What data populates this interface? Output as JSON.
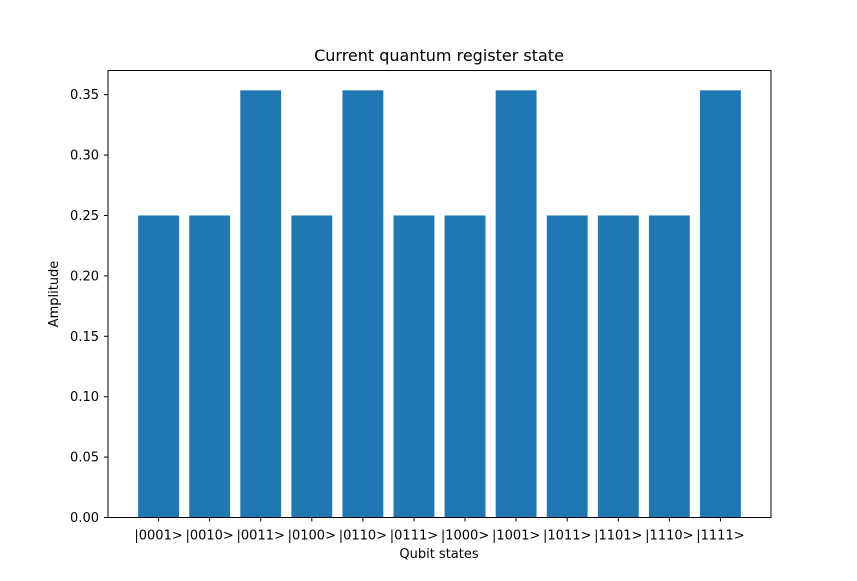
{
  "chart_data": {
    "type": "bar",
    "title": "Current quantum register state",
    "xlabel": "Qubit states",
    "ylabel": "Amplitude",
    "categories": [
      "|0001>",
      "|0010>",
      "|0011>",
      "|0100>",
      "|0110>",
      "|0111>",
      "|1000>",
      "|1001>",
      "|1011>",
      "|1101>",
      "|1110>",
      "|1111>"
    ],
    "values": [
      0.25,
      0.25,
      0.3536,
      0.25,
      0.3536,
      0.25,
      0.25,
      0.3536,
      0.25,
      0.25,
      0.25,
      0.3536
    ],
    "ylim": [
      0,
      0.37
    ],
    "yticks": [
      0.0,
      0.05,
      0.1,
      0.15,
      0.2,
      0.25,
      0.3,
      0.35
    ],
    "ytick_labels": [
      "0.00",
      "0.05",
      "0.10",
      "0.15",
      "0.20",
      "0.25",
      "0.30",
      "0.35"
    ],
    "bar_color": "#1f77b4",
    "grid": false,
    "legend": "none"
  }
}
